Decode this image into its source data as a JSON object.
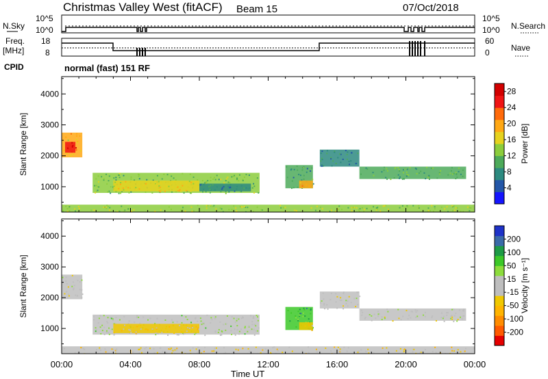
{
  "header": {
    "title": "Christmas Valley West (fitACF)",
    "beam": "Beam 15",
    "date": "07/Oct/2018"
  },
  "top_panels": {
    "nsky_label": "N.Sky",
    "nsky_ticks": [
      "10^5",
      "10^0"
    ],
    "nsearch_label": "N.Search",
    "nsearch_ticks": [
      "10^5",
      "10^0"
    ],
    "freq_label_1": "Freq.",
    "freq_label_2": "[MHz]",
    "freq_ticks": [
      "18",
      "8"
    ],
    "nave_label": "Nave",
    "nave_ticks": [
      "60",
      "0"
    ],
    "cpid_label": "CPID",
    "cpid_text": "normal (fast) 151 RF"
  },
  "x_axis": {
    "label": "Time UT",
    "ticks": [
      "00:00",
      "04:00",
      "08:00",
      "12:00",
      "16:00",
      "20:00",
      "00:00"
    ]
  },
  "chart_data": [
    {
      "type": "heatmap",
      "name": "power",
      "xlabel": "Time UT",
      "ylabel": "Slant Range [km]",
      "xlim": [
        0,
        24
      ],
      "ylim": [
        180,
        4560
      ],
      "y_ticks": [
        "1000",
        "2000",
        "3000",
        "4000"
      ],
      "y_tick_values": [
        1000,
        2000,
        3000,
        4000
      ],
      "colorbar": {
        "label": "Power [dB]",
        "ticks": [
          "4",
          "8",
          "12",
          "16",
          "20",
          "24",
          "28"
        ],
        "tick_values": [
          4,
          8,
          12,
          16,
          20,
          24,
          28
        ],
        "range": [
          0,
          30
        ],
        "colors": [
          "#1414ff",
          "#2457a8",
          "#2d8a80",
          "#4daa5a",
          "#8ccd3c",
          "#e6d21e",
          "#ffa814",
          "#ff6a0a",
          "#f01414",
          "#d20000"
        ]
      },
      "regions": [
        {
          "t0": 0.0,
          "t1": 1.2,
          "r0": 1950,
          "r1": 2750,
          "v": 18
        },
        {
          "t0": 0.2,
          "t1": 0.8,
          "r0": 2100,
          "r1": 2450,
          "v": 26
        },
        {
          "t0": 1.8,
          "t1": 11.5,
          "r0": 800,
          "r1": 1450,
          "v": 12
        },
        {
          "t0": 3.0,
          "t1": 8.0,
          "r0": 850,
          "r1": 1200,
          "v": 17
        },
        {
          "t0": 8.0,
          "t1": 11.0,
          "r0": 850,
          "r1": 1100,
          "v": 8
        },
        {
          "t0": 13.0,
          "t1": 14.6,
          "r0": 950,
          "r1": 1700,
          "v": 9
        },
        {
          "t0": 13.8,
          "t1": 14.6,
          "r0": 950,
          "r1": 1200,
          "v": 20
        },
        {
          "t0": 17.3,
          "t1": 23.5,
          "r0": 1250,
          "r1": 1650,
          "v": 11
        },
        {
          "t0": 15.0,
          "t1": 17.3,
          "r0": 1650,
          "r1": 2200,
          "v": 8
        },
        {
          "t0": 0.0,
          "t1": 24.0,
          "r0": 180,
          "r1": 420,
          "v": 14
        }
      ]
    },
    {
      "type": "heatmap",
      "name": "velocity",
      "xlabel": "Time UT",
      "ylabel": "Slant Range [km]",
      "xlim": [
        0,
        24
      ],
      "ylim": [
        180,
        4560
      ],
      "y_ticks": [
        "1000",
        "2000",
        "3000",
        "4000"
      ],
      "y_tick_values": [
        1000,
        2000,
        3000,
        4000
      ],
      "colorbar": {
        "label": "Velocity [m s⁻¹]",
        "ticks": [
          "200",
          "100",
          "50",
          "15",
          "-15",
          "-50",
          "-100",
          "-200"
        ],
        "tick_values": [
          200,
          100,
          50,
          15,
          -15,
          -50,
          -100,
          -200
        ],
        "range": [
          -250,
          250
        ],
        "colors": [
          "#e60000",
          "#ff5a00",
          "#ff8c00",
          "#ffb400",
          "#f0c800",
          "#bebebe",
          "#bebebe",
          "#8cdc3c",
          "#3cc828",
          "#1e9b46",
          "#3a6aa8",
          "#1e32c8"
        ]
      },
      "regions": [
        {
          "t0": 0.0,
          "t1": 1.2,
          "r0": 1950,
          "r1": 2750,
          "v": 0
        },
        {
          "t0": 1.8,
          "t1": 11.5,
          "r0": 800,
          "r1": 1450,
          "v": 30
        },
        {
          "t0": 3.0,
          "t1": 8.0,
          "r0": 850,
          "r1": 1150,
          "v": -60
        },
        {
          "t0": 13.0,
          "t1": 14.6,
          "r0": 950,
          "r1": 1700,
          "v": 110
        },
        {
          "t0": 13.8,
          "t1": 14.6,
          "r0": 950,
          "r1": 1200,
          "v": -80
        },
        {
          "t0": 17.3,
          "t1": 23.5,
          "r0": 1250,
          "r1": 1650,
          "v": 0
        },
        {
          "t0": 15.0,
          "t1": 17.3,
          "r0": 1650,
          "r1": 2200,
          "v": 0
        },
        {
          "t0": 0.0,
          "t1": 24.0,
          "r0": 180,
          "r1": 420,
          "v": -40
        }
      ]
    }
  ]
}
